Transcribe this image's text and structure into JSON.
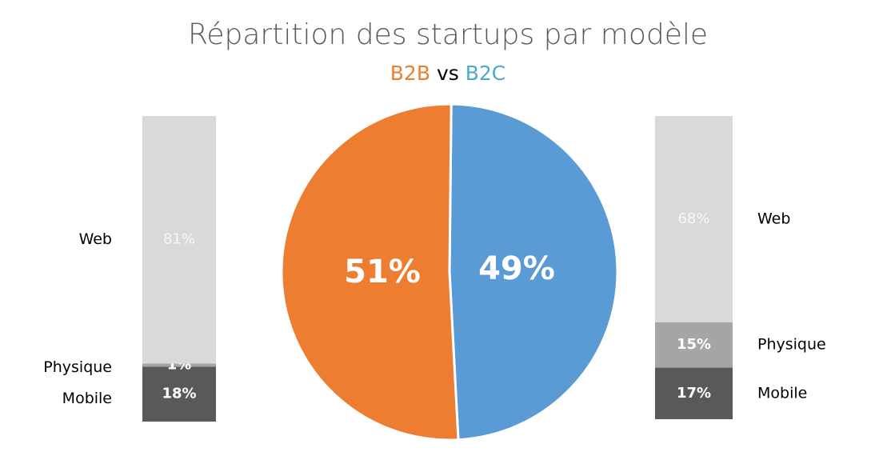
{
  "chart_data": [
    {
      "type": "pie",
      "title": "Répartition des startups par modèle",
      "subtitle_connector": "vs",
      "categories": [
        "B2B",
        "B2C"
      ],
      "values": [
        51,
        49
      ],
      "value_labels": [
        "51%",
        "49%"
      ],
      "colors": [
        "#ed7d31",
        "#5b9bd5"
      ],
      "category_text_colors": [
        "#ed7d31",
        "#4bacc6"
      ]
    },
    {
      "type": "stacked-bar",
      "categories": [
        "Web",
        "Physique",
        "Mobile"
      ],
      "values": [
        81,
        1,
        18
      ],
      "value_labels": [
        "81%",
        "1%",
        "18%"
      ],
      "colors": [
        "#d9d9d9",
        "#a5a5a5",
        "#595959"
      ],
      "legend": "left"
    },
    {
      "type": "stacked-bar",
      "categories": [
        "Web",
        "Physique",
        "Mobile"
      ],
      "values": [
        68,
        15,
        17
      ],
      "value_labels": [
        "68%",
        "15%",
        "17%"
      ],
      "colors": [
        "#d9d9d9",
        "#a5a5a5",
        "#595959"
      ],
      "legend": "right"
    }
  ]
}
